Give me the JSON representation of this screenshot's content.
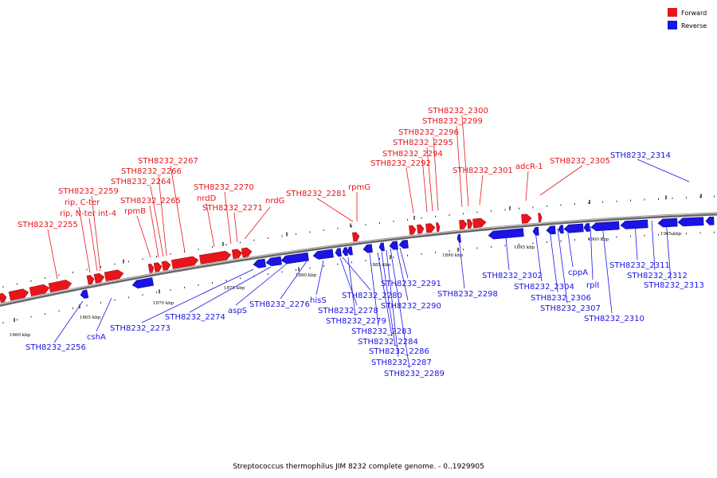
{
  "caption": "Streptococcus thermophilus JIM 8232 complete genome. - 0..1929905",
  "legend": [
    {
      "label": "Forward",
      "color": "#e8161c"
    },
    {
      "label": "Reverse",
      "color": "#1a14e6"
    }
  ],
  "colors": {
    "forward": "#e8161c",
    "reverse": "#1a14e6",
    "backbone": "#888888"
  },
  "ticks": [
    "1860 kbp",
    "1865 kbp",
    "1870 kbp",
    "1875 kbp",
    "1880 kbp",
    "1885 kbp",
    "1890 kbp",
    "1895 kbp",
    "1900 kbp",
    "1905 kbp"
  ],
  "forward_labels": [
    "STH8232_2255",
    "rip, C-ter",
    "rip, N-ter int-4",
    "STH8232_2259",
    "rpmB",
    "STH8232_2265",
    "STH8232_2264",
    "STH8232_2266",
    "STH8232_2267",
    "nrdD",
    "STH8232_2270",
    "STH8232_2271",
    "nrdG",
    "STH8232_2281",
    "rpmG",
    "STH8232_2292",
    "STH8232_2294",
    "STH8232_2295",
    "STH8232_2296",
    "STH8232_2299",
    "STH8232_2300",
    "STH8232_2301",
    "adcR-1",
    "STH8232_2305"
  ],
  "reverse_labels": [
    "STH8232_2314",
    "STH8232_2256",
    "cshA",
    "STH8232_2273",
    "STH8232_2274",
    "aspS",
    "STH8232_2276",
    "hisS",
    "STH8232_2280",
    "STH8232_2278",
    "STH8232_2279",
    "STH8232_2283",
    "STH8232_2284",
    "STH8232_2286",
    "STH8232_2287",
    "STH8232_2289",
    "STH8232_2291",
    "STH8232_2290",
    "STH8232_2298",
    "STH8232_2302",
    "STH8232_2304",
    "STH8232_2306",
    "STH8232_2307",
    "cppA",
    "rplI",
    "STH8232_2310",
    "STH8232_2311",
    "STH8232_2312",
    "STH8232_2313"
  ]
}
